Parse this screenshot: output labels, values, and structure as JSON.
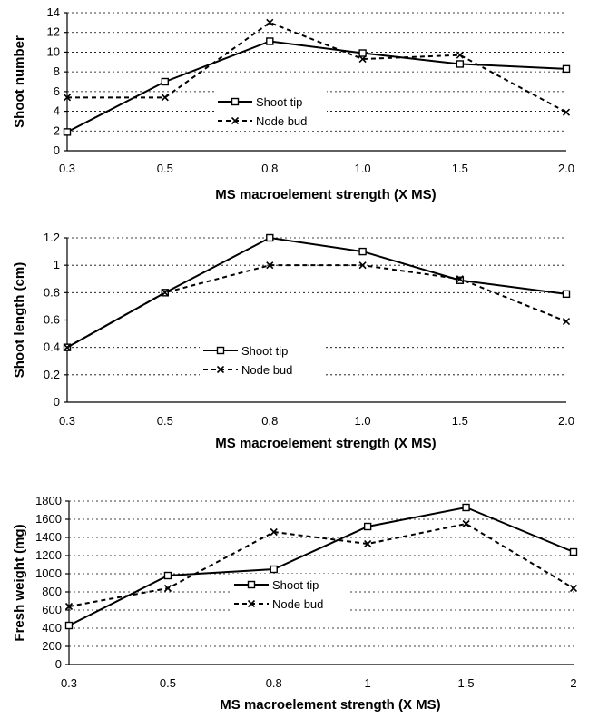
{
  "chart_data": [
    {
      "type": "line",
      "xlabel": "MS macroelement strength (X MS)",
      "ylabel": "Shoot number",
      "categories": [
        "0.3",
        "0.5",
        "0.8",
        "1.0",
        "1.5",
        "2.0"
      ],
      "ylim": [
        0,
        14
      ],
      "yticks": [
        "0",
        "2",
        "4",
        "6",
        "8",
        "10",
        "12",
        "14"
      ],
      "grid": true,
      "legend": "center",
      "series": [
        {
          "name": "Shoot tip",
          "values": [
            1.9,
            7.0,
            11.1,
            9.9,
            8.8,
            8.3
          ]
        },
        {
          "name": "Node bud",
          "values": [
            5.4,
            5.4,
            13.0,
            9.3,
            9.7,
            3.9
          ]
        }
      ]
    },
    {
      "type": "line",
      "xlabel": "MS macroelement strength (X MS)",
      "ylabel": "Shoot length (cm)",
      "categories": [
        "0.3",
        "0.5",
        "0.8",
        "1.0",
        "1.5",
        "2.0"
      ],
      "ylim": [
        0,
        1.2
      ],
      "yticks": [
        "0",
        "0.2",
        "0.4",
        "0.6",
        "0.8",
        "1",
        "1.2"
      ],
      "grid": true,
      "legend": "center",
      "series": [
        {
          "name": "Shoot tip",
          "values": [
            0.4,
            0.8,
            1.2,
            1.1,
            0.89,
            0.79
          ]
        },
        {
          "name": "Node bud",
          "values": [
            0.4,
            0.8,
            1.0,
            1.0,
            0.9,
            0.59
          ]
        }
      ]
    },
    {
      "type": "line",
      "xlabel": "MS macroelement strength  (X MS)",
      "ylabel": "Fresh weight (mg)",
      "categories": [
        "0.3",
        "0.5",
        "0.8",
        "1",
        "1.5",
        "2"
      ],
      "ylim": [
        0,
        1800
      ],
      "yticks": [
        "0",
        "200",
        "400",
        "600",
        "800",
        "1000",
        "1200",
        "1400",
        "1600",
        "1800"
      ],
      "grid": true,
      "legend": "center",
      "series": [
        {
          "name": "Shoot tip",
          "values": [
            430,
            980,
            1050,
            1520,
            1730,
            1240
          ]
        },
        {
          "name": "Node bud",
          "values": [
            640,
            840,
            1460,
            1330,
            1550,
            840
          ]
        }
      ]
    }
  ]
}
